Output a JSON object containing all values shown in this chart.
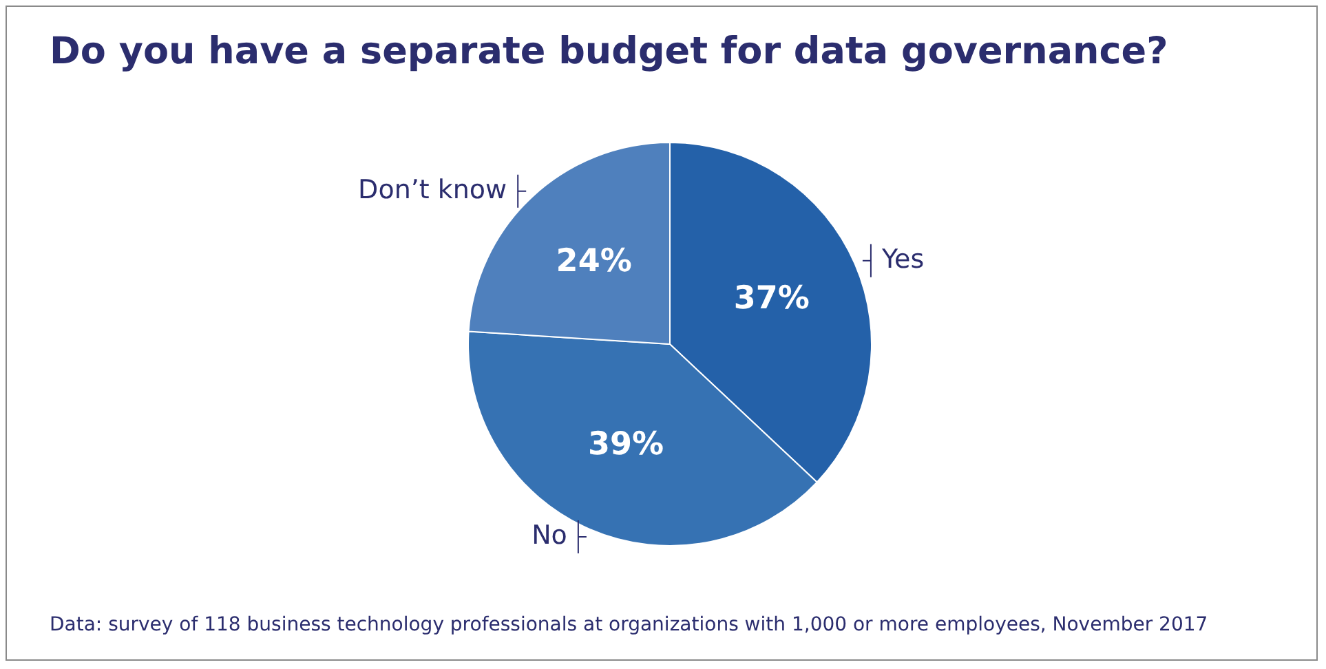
{
  "chart_data": {
    "type": "pie",
    "title": "Do you have a separate budget for data governance?",
    "categories": [
      "Yes",
      "No",
      "Don’t know"
    ],
    "values": [
      37,
      39,
      24
    ],
    "colors": [
      "#2461a9",
      "#3672b3",
      "#4f80bd"
    ],
    "value_labels": [
      "37%",
      "39%",
      "24%"
    ],
    "legend": false,
    "annotations": [
      "Data: survey of 118 business technology professionals at organizations with 1,000 or more employees, November 2017"
    ]
  }
}
